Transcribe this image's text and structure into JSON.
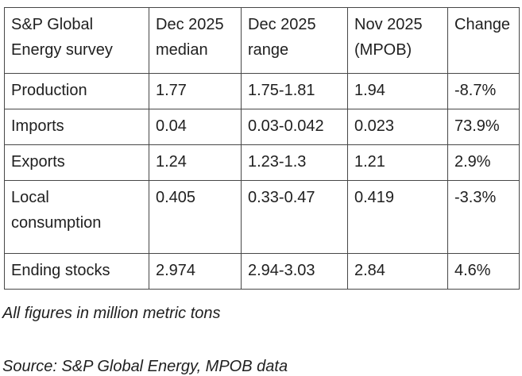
{
  "colors": {
    "background": "#ffffff",
    "text": "#1f1f1f",
    "table_border": "#474747"
  },
  "chart_data": {
    "type": "table",
    "title": "S&P Global Energy survey",
    "columns": [
      "S&P Global Energy survey",
      "Dec 2025 median",
      "Dec 2025 range",
      "Nov 2025 (MPOB)",
      "Change"
    ],
    "rows": [
      [
        "Production",
        "1.77",
        "1.75-1.81",
        "1.94",
        "-8.7%"
      ],
      [
        "Imports",
        "0.04",
        "0.03-0.042",
        "0.023",
        "73.9%"
      ],
      [
        "Exports",
        "1.24",
        "1.23-1.3",
        "1.21",
        "2.9%"
      ],
      [
        "Local consumption",
        "0.405",
        "0.33-0.47",
        "0.419",
        "-3.3%"
      ],
      [
        "Ending stocks",
        "2.974",
        "2.94-3.03",
        "2.84",
        "4.6%"
      ]
    ],
    "numeric": {
      "categories": [
        "Production",
        "Imports",
        "Exports",
        "Local consumption",
        "Ending stocks"
      ],
      "series": [
        {
          "name": "Dec 2025 median",
          "values": [
            1.77,
            0.04,
            1.24,
            0.405,
            2.974
          ]
        },
        {
          "name": "Dec 2025 range low",
          "values": [
            1.75,
            0.03,
            1.23,
            0.33,
            2.94
          ]
        },
        {
          "name": "Dec 2025 range high",
          "values": [
            1.81,
            0.042,
            1.3,
            0.47,
            3.03
          ]
        },
        {
          "name": "Nov 2025 (MPOB)",
          "values": [
            1.94,
            0.023,
            1.21,
            0.419,
            2.84
          ]
        },
        {
          "name": "Change %",
          "values": [
            -8.7,
            73.9,
            2.9,
            -3.3,
            4.6
          ]
        }
      ]
    },
    "notes": {
      "units": "All figures in million metric tons",
      "source": "Source: S&P Global Energy, MPOB data"
    },
    "legend_position": "none",
    "grid": true
  }
}
